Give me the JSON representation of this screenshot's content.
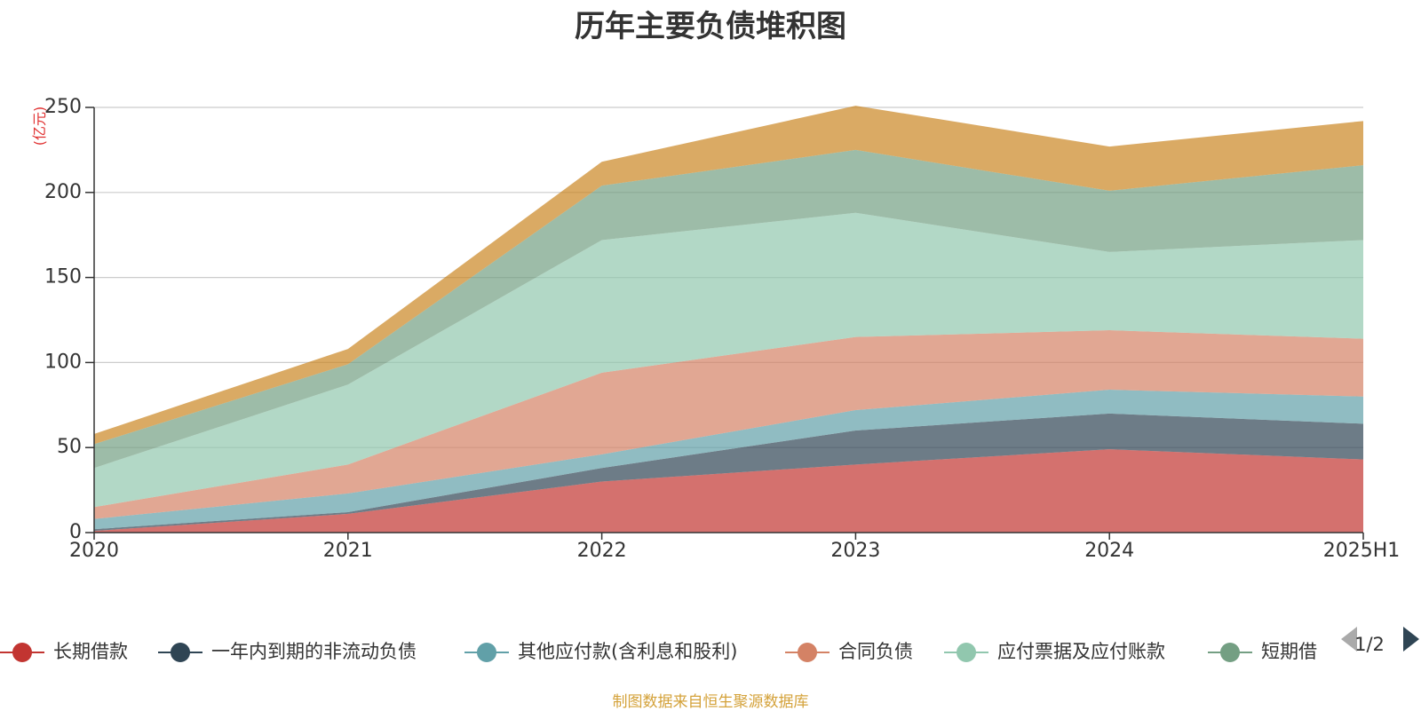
{
  "chart_data": {
    "type": "area",
    "stacked": true,
    "title": "历年主要负债堆积图",
    "ylabel": "(亿元)",
    "xlabel": "",
    "categories": [
      "2020",
      "2021",
      "2022",
      "2023",
      "2024",
      "2025H1"
    ],
    "ylim": [
      0,
      250
    ],
    "yticks": [
      0,
      50,
      100,
      150,
      200,
      250
    ],
    "grid": true,
    "legend_position": "bottom",
    "series": [
      {
        "name": "长期借款",
        "color": "#c23531",
        "values": [
          1,
          11,
          30,
          40,
          49,
          43
        ]
      },
      {
        "name": "一年内到期的非流动负债",
        "color": "#2f4554",
        "values": [
          1,
          1,
          8,
          20,
          21,
          21
        ]
      },
      {
        "name": "其他应付款(含利息和股利)",
        "color": "#61a0a8",
        "values": [
          6,
          11,
          8,
          12,
          14,
          16
        ]
      },
      {
        "name": "合同负债",
        "color": "#d48265",
        "values": [
          7,
          17,
          48,
          43,
          35,
          34
        ]
      },
      {
        "name": "应付票据及应付账款",
        "color": "#91c7ae",
        "values": [
          23,
          47,
          78,
          73,
          46,
          58
        ]
      },
      {
        "name": "短期借款",
        "color": "#749f83",
        "values": [
          14,
          12,
          32,
          37,
          36,
          44
        ]
      },
      {
        "name": "",
        "color": "#ca8622",
        "values": [
          6,
          9,
          14,
          26,
          26,
          26
        ]
      }
    ]
  },
  "legend": {
    "visible_items": [
      "长期借款",
      "一年内到期的非流动负债",
      "其他应付款(含利息和股利)",
      "合同负债",
      "应付票据及应付账款",
      "短期借"
    ],
    "page_indicator": "1/2"
  },
  "source_note": "制图数据来自恒生聚源数据库"
}
